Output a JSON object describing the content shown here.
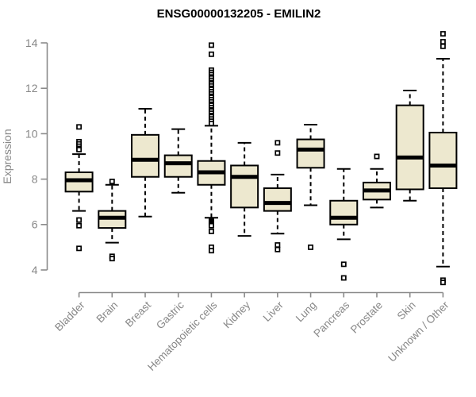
{
  "chart_data": {
    "type": "boxplot",
    "title": "ENSG00000132205 - EMILIN2",
    "ylabel": "Expression",
    "yticks": [
      4,
      6,
      8,
      10,
      12,
      14
    ],
    "ylim": [
      3.0,
      14.6
    ],
    "grid": false,
    "legend": "none",
    "categories": [
      "Bladder",
      "Brain",
      "Breast",
      "Gastric",
      "Hematopoietic cells",
      "Kidney",
      "Liver",
      "Lung",
      "Pancreas",
      "Prostate",
      "Skin",
      "Unknown / Other"
    ],
    "boxes": [
      {
        "label": "Bladder",
        "whisker_low": 6.6,
        "q1": 7.45,
        "median": 7.95,
        "q3": 8.3,
        "whisker_high": 9.1,
        "outliers": [
          10.3,
          9.65,
          9.55,
          9.45,
          9.35,
          9.3,
          6.2,
          5.95,
          4.95
        ]
      },
      {
        "label": "Brain",
        "whisker_low": 5.2,
        "q1": 5.85,
        "median": 6.3,
        "q3": 6.6,
        "whisker_high": 7.75,
        "outliers": [
          7.9,
          4.6,
          4.5
        ]
      },
      {
        "label": "Breast",
        "whisker_low": 6.35,
        "q1": 8.1,
        "median": 8.85,
        "q3": 9.95,
        "whisker_high": 11.1,
        "outliers": []
      },
      {
        "label": "Gastric",
        "whisker_low": 7.4,
        "q1": 8.1,
        "median": 8.7,
        "q3": 9.05,
        "whisker_high": 10.2,
        "outliers": []
      },
      {
        "label": "Hematopoietic cells",
        "whisker_low": 6.3,
        "q1": 7.75,
        "median": 8.3,
        "q3": 8.8,
        "whisker_high": 10.35,
        "outliers": [
          13.9,
          13.5,
          12.8,
          12.7,
          12.6,
          12.5,
          12.45,
          12.35,
          12.25,
          12.2,
          12.1,
          12.0,
          11.95,
          11.85,
          11.75,
          11.65,
          11.6,
          11.5,
          11.4,
          11.3,
          11.25,
          11.15,
          11.05,
          11.0,
          10.9,
          10.8,
          10.75,
          10.65,
          10.55,
          10.45,
          6.15,
          6.1,
          6.05,
          6.0,
          5.95,
          5.7,
          5.0,
          4.85
        ]
      },
      {
        "label": "Kidney",
        "whisker_low": 5.5,
        "q1": 6.75,
        "median": 8.1,
        "q3": 8.6,
        "whisker_high": 9.6,
        "outliers": []
      },
      {
        "label": "Liver",
        "whisker_low": 5.6,
        "q1": 6.6,
        "median": 6.95,
        "q3": 7.6,
        "whisker_high": 8.2,
        "outliers": [
          9.6,
          9.15,
          5.1,
          4.9
        ]
      },
      {
        "label": "Lung",
        "whisker_low": 6.85,
        "q1": 8.5,
        "median": 9.3,
        "q3": 9.75,
        "whisker_high": 10.4,
        "outliers": [
          5.0
        ]
      },
      {
        "label": "Pancreas",
        "whisker_low": 5.35,
        "q1": 6.0,
        "median": 6.3,
        "q3": 7.05,
        "whisker_high": 8.45,
        "outliers": [
          4.25,
          3.65
        ]
      },
      {
        "label": "Prostate",
        "whisker_low": 6.75,
        "q1": 7.1,
        "median": 7.5,
        "q3": 7.85,
        "whisker_high": 8.45,
        "outliers": [
          9.0
        ]
      },
      {
        "label": "Skin",
        "whisker_low": 7.05,
        "q1": 7.55,
        "median": 8.95,
        "q3": 11.25,
        "whisker_high": 11.9,
        "outliers": []
      },
      {
        "label": "Unknown / Other",
        "whisker_low": 4.15,
        "q1": 7.6,
        "median": 8.6,
        "q3": 10.05,
        "whisker_high": 13.3,
        "outliers": [
          14.4,
          14.05,
          13.85,
          3.55,
          3.45
        ]
      }
    ],
    "colors": {
      "box_fill": "#EDE8CF",
      "box_stroke": "#000000",
      "median": "#000000",
      "whisker": "#000000",
      "outlier_stroke": "#000000",
      "axis": "#8A8A8A",
      "label": "#878787",
      "title": "#000000",
      "background": "#FFFFFF"
    }
  }
}
